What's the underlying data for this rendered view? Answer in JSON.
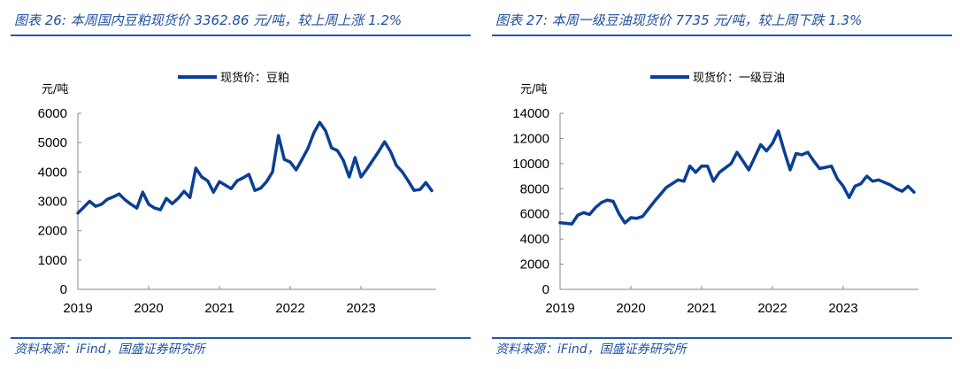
{
  "charts_meta": {
    "line_color": "#0b3f93",
    "rule_color": "#1f5aa8",
    "title_color": "#1f4f9c"
  },
  "chart_data": [
    {
      "type": "line",
      "title": "图表 26:  本周国内豆粕现货价 3362.86 元/吨，较上周上涨 1.2%",
      "ylabel": "元/吨",
      "legend": "top-center",
      "series": [
        {
          "name": "现货价：豆粕",
          "x": [
            "2019-01",
            "2019-02",
            "2019-03",
            "2019-04",
            "2019-05",
            "2019-06",
            "2019-07",
            "2019-08",
            "2019-09",
            "2019-10",
            "2019-11",
            "2019-12",
            "2020-01",
            "2020-02",
            "2020-03",
            "2020-04",
            "2020-05",
            "2020-06",
            "2020-07",
            "2020-08",
            "2020-09",
            "2020-10",
            "2020-11",
            "2020-12",
            "2021-01",
            "2021-02",
            "2021-03",
            "2021-04",
            "2021-05",
            "2021-06",
            "2021-07",
            "2021-08",
            "2021-09",
            "2021-10",
            "2021-11",
            "2021-12",
            "2022-01",
            "2022-02",
            "2022-03",
            "2022-04",
            "2022-05",
            "2022-06",
            "2022-07",
            "2022-08",
            "2022-09",
            "2022-10",
            "2022-11",
            "2022-12",
            "2023-01",
            "2023-02",
            "2023-03",
            "2023-04",
            "2023-05",
            "2023-06",
            "2023-07",
            "2023-08",
            "2023-09",
            "2023-10",
            "2023-11",
            "2023-12",
            "2024-01"
          ],
          "values": [
            2600,
            2800,
            3000,
            2830,
            2900,
            3070,
            3150,
            3250,
            3050,
            2900,
            2770,
            3310,
            2900,
            2770,
            2710,
            3100,
            2920,
            3100,
            3340,
            3130,
            4130,
            3830,
            3700,
            3310,
            3670,
            3550,
            3430,
            3700,
            3800,
            3920,
            3370,
            3450,
            3670,
            4000,
            5240,
            4430,
            4340,
            4070,
            4430,
            4800,
            5330,
            5690,
            5400,
            4820,
            4730,
            4400,
            3830,
            4490,
            3830,
            4100,
            4400,
            4700,
            5030,
            4700,
            4220,
            4000,
            3700,
            3370,
            3400,
            3640,
            3363
          ]
        }
      ],
      "xticks": [
        "2019",
        "2020",
        "2021",
        "2022",
        "2023"
      ],
      "yticks": [
        0,
        1000,
        2000,
        3000,
        4000,
        5000,
        6000
      ],
      "ylim": [
        0,
        6000
      ],
      "xlim": [
        "2019-01",
        "2024-01"
      ],
      "grid": false,
      "source": "资料来源：iFind，国盛证券研究所"
    },
    {
      "type": "line",
      "title": "图表 27:  本周一级豆油现货价 7735 元/吨，较上周下跌 1.3%",
      "ylabel": "元/吨",
      "legend": "top-center",
      "series": [
        {
          "name": "现货价：一级豆油",
          "x": [
            "2019-01",
            "2019-02",
            "2019-03",
            "2019-04",
            "2019-05",
            "2019-06",
            "2019-07",
            "2019-08",
            "2019-09",
            "2019-10",
            "2019-11",
            "2019-12",
            "2020-01",
            "2020-02",
            "2020-03",
            "2020-04",
            "2020-05",
            "2020-06",
            "2020-07",
            "2020-08",
            "2020-09",
            "2020-10",
            "2020-11",
            "2020-12",
            "2021-01",
            "2021-02",
            "2021-03",
            "2021-04",
            "2021-05",
            "2021-06",
            "2021-07",
            "2021-08",
            "2021-09",
            "2021-10",
            "2021-11",
            "2021-12",
            "2022-01",
            "2022-02",
            "2022-03",
            "2022-04",
            "2022-05",
            "2022-06",
            "2022-07",
            "2022-08",
            "2022-09",
            "2022-10",
            "2022-11",
            "2022-12",
            "2023-01",
            "2023-02",
            "2023-03",
            "2023-04",
            "2023-05",
            "2023-06",
            "2023-07",
            "2023-08",
            "2023-09",
            "2023-10",
            "2023-11",
            "2023-12",
            "2024-01"
          ],
          "values": [
            5300,
            5250,
            5200,
            5900,
            6100,
            5950,
            6500,
            6900,
            7100,
            7000,
            6000,
            5280,
            5700,
            5650,
            5800,
            6400,
            7000,
            7540,
            8100,
            8400,
            8700,
            8600,
            9800,
            9300,
            9800,
            9800,
            8600,
            9300,
            9650,
            10000,
            10900,
            10200,
            9500,
            10500,
            11500,
            11000,
            11600,
            12600,
            11000,
            9500,
            10800,
            10700,
            10900,
            10200,
            9600,
            9700,
            9800,
            8800,
            8200,
            7300,
            8200,
            8400,
            9000,
            8600,
            8700,
            8500,
            8300,
            8000,
            7800,
            8200,
            7735
          ]
        }
      ],
      "xticks": [
        "2019",
        "2020",
        "2021",
        "2022",
        "2023"
      ],
      "yticks": [
        0,
        2000,
        4000,
        6000,
        8000,
        10000,
        12000,
        14000
      ],
      "ylim": [
        0,
        14000
      ],
      "xlim": [
        "2019-01",
        "2024-01"
      ],
      "grid": false,
      "source": "资料来源：iFind，国盛证券研究所"
    }
  ]
}
